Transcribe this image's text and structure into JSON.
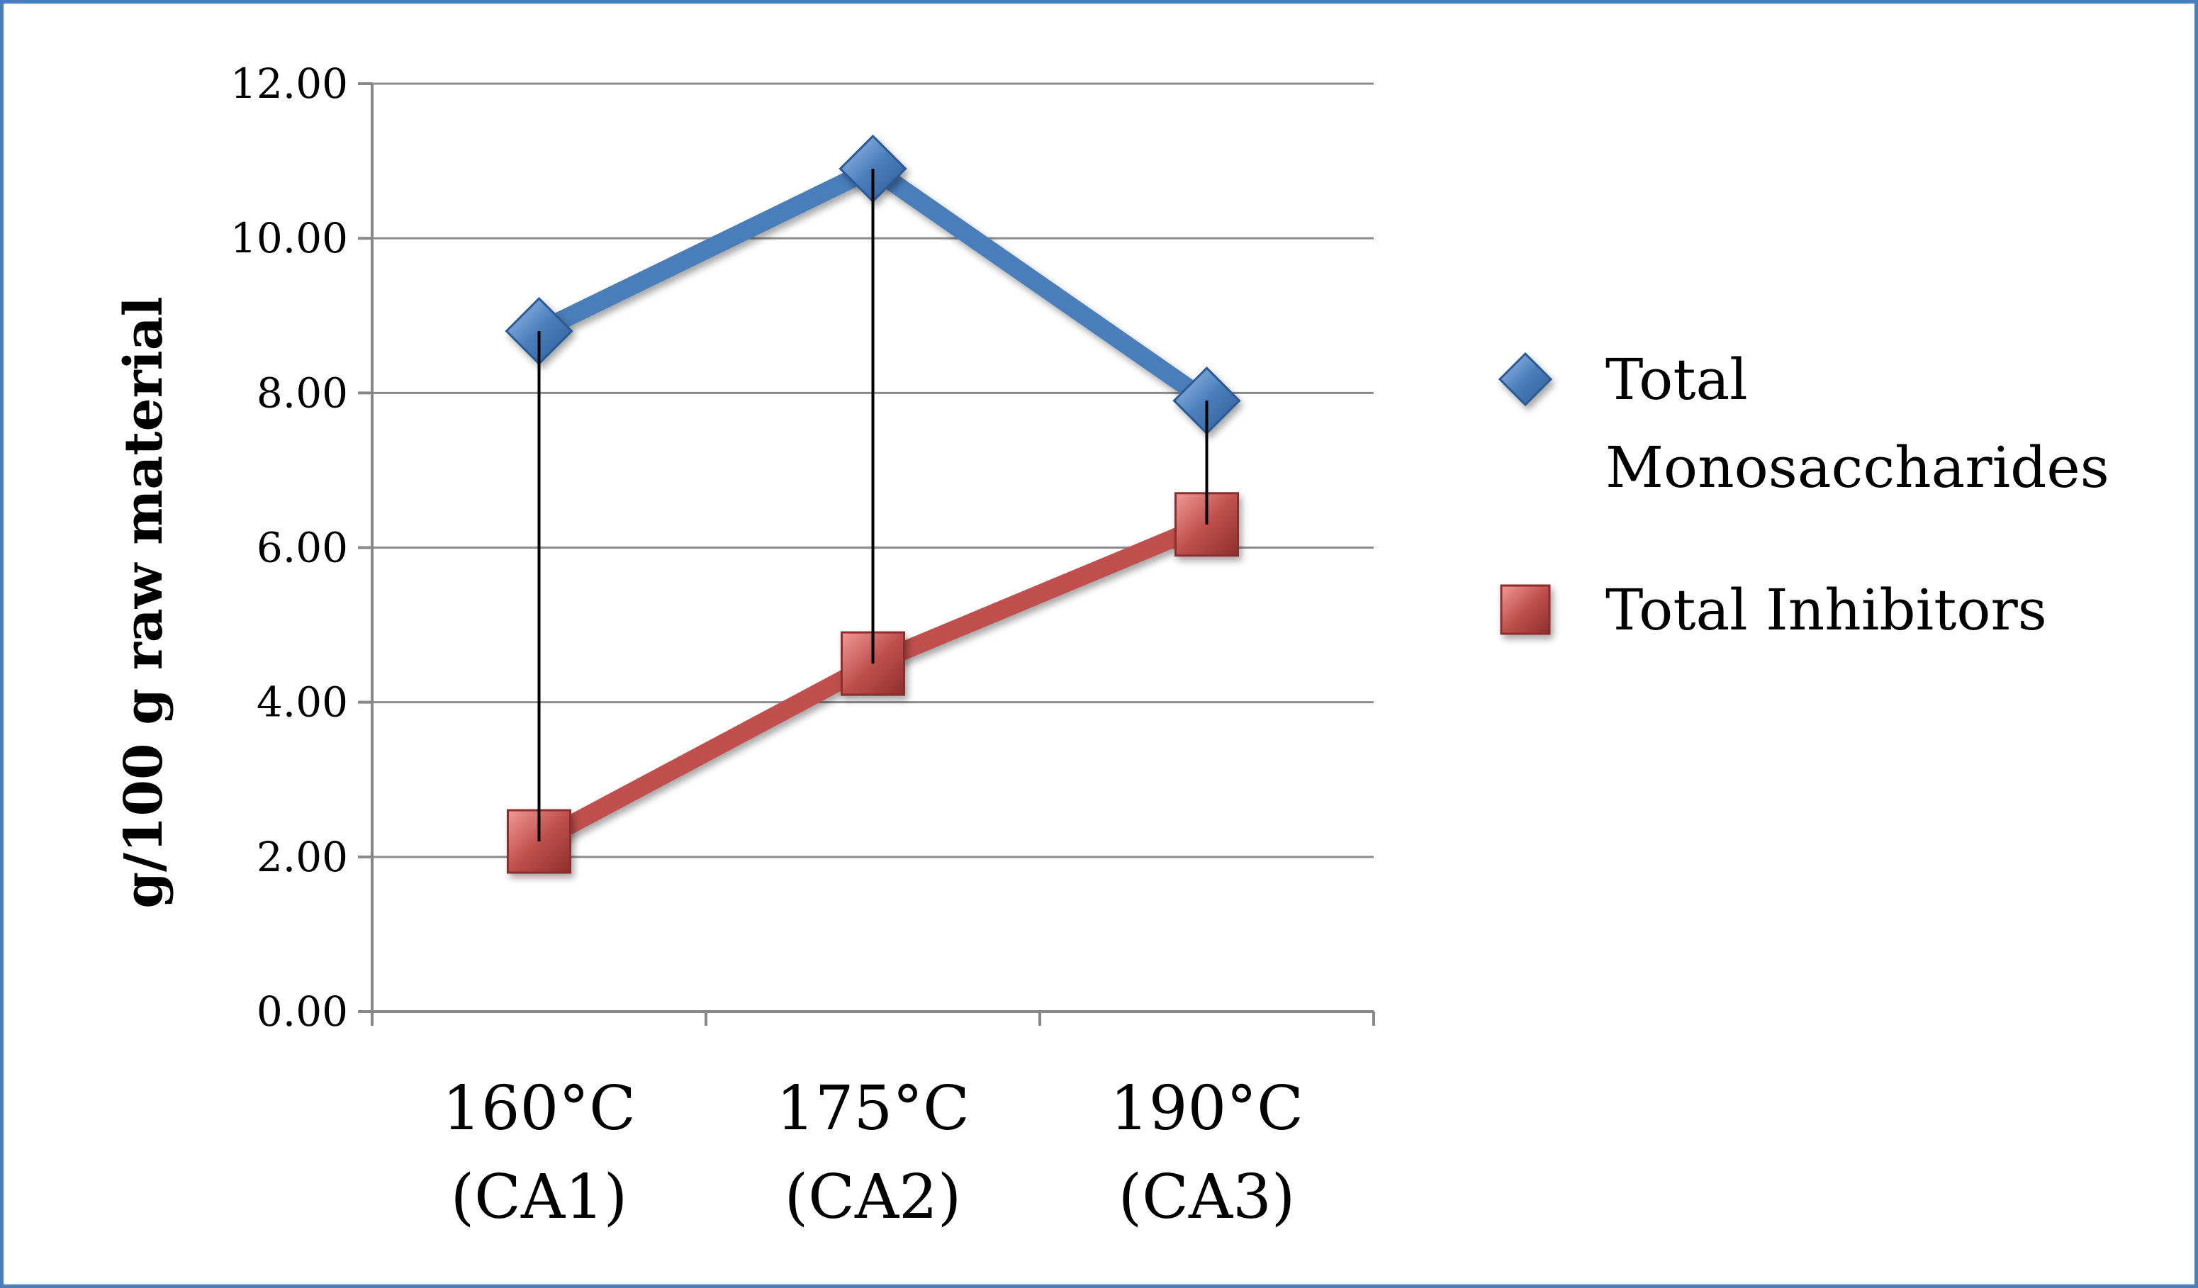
{
  "chart_data": {
    "type": "line",
    "title": "",
    "xlabel": "",
    "ylabel": "g/100 g raw material",
    "ylim": [
      0,
      12
    ],
    "yticks": [
      "0.00",
      "2.00",
      "4.00",
      "6.00",
      "8.00",
      "10.00",
      "12.00"
    ],
    "grid": true,
    "legend_position": "right",
    "categories": [
      {
        "line1": "160°C",
        "line2": "(CA1)"
      },
      {
        "line1": "175°C",
        "line2": "(CA2)"
      },
      {
        "line1": "190°C",
        "line2": "(CA3)"
      }
    ],
    "series": [
      {
        "name": "Total Monosaccharides",
        "legend_lines": [
          "Total",
          "Monosaccharides"
        ],
        "values": [
          8.8,
          10.9,
          7.9
        ],
        "color": "#4a7ebb",
        "marker": "diamond"
      },
      {
        "name": "Total Inhibitors",
        "legend_lines": [
          "Total Inhibitors"
        ],
        "values": [
          2.2,
          4.5,
          6.3
        ],
        "color": "#c0504d",
        "marker": "square"
      }
    ],
    "annotations": "vertical high-low lines connect the two series at each category"
  }
}
